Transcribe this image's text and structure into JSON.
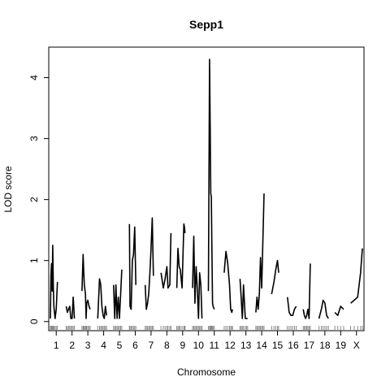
{
  "chart_data": {
    "type": "line",
    "title": "Sepp1",
    "xlabel": "Chromosome",
    "ylabel": "LOD score",
    "ylim": [
      -0.15,
      4.5
    ],
    "yticks": [
      0,
      1,
      2,
      3,
      4
    ],
    "grid": false,
    "legend": "none",
    "line_color": "#000000",
    "chromosomes": [
      "1",
      "2",
      "3",
      "4",
      "5",
      "6",
      "7",
      "8",
      "9",
      "10",
      "11",
      "12",
      "13",
      "14",
      "15",
      "16",
      "17",
      "18",
      "19",
      "X"
    ],
    "tick_labels": [
      "1",
      "2",
      "3",
      "4",
      "5",
      "6",
      "7",
      "8",
      "9",
      "10",
      "11",
      "12",
      "13",
      "14",
      "15",
      "16",
      "17",
      "18",
      "19",
      "X"
    ],
    "series": [
      {
        "chr": "1",
        "x": [
          0,
          0.05,
          0.1,
          0.15,
          0.2,
          0.25,
          0.3,
          0.4,
          0.5,
          0.6
        ],
        "y": [
          0.05,
          0.75,
          0.95,
          0.5,
          1.25,
          0.6,
          0.25,
          0.05,
          0.2,
          0.65
        ]
      },
      {
        "chr": "2",
        "x": [
          0,
          0.1,
          0.2,
          0.3,
          0.4,
          0.5,
          0.6,
          0.7
        ],
        "y": [
          0.25,
          0.15,
          0.2,
          0.25,
          0.05,
          0.05,
          0.4,
          0.05
        ]
      },
      {
        "chr": "3",
        "x": [
          0,
          0.1,
          0.15,
          0.2,
          0.3,
          0.35,
          0.4,
          0.5,
          0.6,
          0.7
        ],
        "y": [
          0.5,
          1.1,
          0.8,
          0.6,
          0.45,
          0.05,
          0.3,
          0.35,
          0.25,
          0.2
        ]
      },
      {
        "chr": "4",
        "x": [
          0,
          0.15,
          0.25,
          0.35,
          0.45,
          0.55,
          0.65,
          0.75
        ],
        "y": [
          0.05,
          0.7,
          0.6,
          0.25,
          0.1,
          0.05,
          0.25,
          0.1
        ]
      },
      {
        "chr": "5",
        "x": [
          0,
          0.1,
          0.2,
          0.3,
          0.4,
          0.5,
          0.6,
          0.7
        ],
        "y": [
          0.6,
          0.05,
          0.6,
          0.05,
          0.4,
          0.05,
          0.45,
          0.85
        ]
      },
      {
        "chr": "6",
        "x": [
          0,
          0.05,
          0.15,
          0.25,
          0.35,
          0.45,
          0.55
        ],
        "y": [
          1.6,
          0.25,
          0.2,
          1.0,
          1.1,
          1.55,
          0.6
        ]
      },
      {
        "chr": "7",
        "x": [
          0,
          0.1,
          0.2,
          0.3,
          0.4,
          0.5,
          0.6,
          0.7
        ],
        "y": [
          0.6,
          0.2,
          0.3,
          0.45,
          0.8,
          1.2,
          1.7,
          0.75
        ]
      },
      {
        "chr": "8",
        "x": [
          0,
          0.2,
          0.35,
          0.5,
          0.6,
          0.75,
          0.85
        ],
        "y": [
          0.8,
          0.55,
          0.7,
          0.9,
          0.55,
          0.6,
          1.45
        ]
      },
      {
        "chr": "9",
        "x": [
          0,
          0.1,
          0.2,
          0.3,
          0.45,
          0.6,
          0.65,
          0.7
        ],
        "y": [
          0.55,
          1.2,
          0.9,
          0.85,
          0.55,
          1.6,
          1.55,
          1.45
        ]
      },
      {
        "chr": "10",
        "x": [
          0,
          0.1,
          0.2,
          0.3,
          0.4,
          0.5,
          0.6,
          0.7,
          0.8
        ],
        "y": [
          0.55,
          1.4,
          0.3,
          0.9,
          0.55,
          0.05,
          0.8,
          0.6,
          0.05
        ]
      },
      {
        "chr": "11",
        "x": [
          0,
          0.1,
          0.15,
          0.2,
          0.25,
          0.3,
          0.35,
          0.4,
          0.5
        ],
        "y": [
          0.5,
          4.3,
          3.2,
          2.1,
          2.05,
          1.2,
          0.3,
          0.25,
          0.2
        ]
      },
      {
        "chr": "12",
        "x": [
          0,
          0.15,
          0.3,
          0.45,
          0.55,
          0.65,
          0.7
        ],
        "y": [
          0.8,
          1.15,
          0.95,
          0.6,
          0.2,
          0.15,
          0.2
        ]
      },
      {
        "chr": "13",
        "x": [
          0,
          0.1,
          0.2,
          0.3,
          0.45,
          0.55,
          0.65
        ],
        "y": [
          0.7,
          0.4,
          0.05,
          0.6,
          0.05,
          0.05,
          0.05
        ]
      },
      {
        "chr": "14",
        "x": [
          0,
          0.1,
          0.2,
          0.3,
          0.4,
          0.5,
          0.6,
          0.7
        ],
        "y": [
          0.15,
          0.4,
          0.2,
          0.45,
          1.05,
          0.55,
          1.3,
          2.1
        ]
      },
      {
        "chr": "15",
        "x": [
          0,
          0.2,
          0.35,
          0.5,
          0.6
        ],
        "y": [
          0.45,
          0.65,
          0.85,
          1.0,
          0.8
        ]
      },
      {
        "chr": "16",
        "x": [
          0,
          0.15,
          0.3,
          0.45,
          0.6,
          0.75
        ],
        "y": [
          0.4,
          0.15,
          0.1,
          0.1,
          0.2,
          0.25
        ]
      },
      {
        "chr": "17",
        "x": [
          0,
          0.1,
          0.2,
          0.3,
          0.4,
          0.5,
          0.6
        ],
        "y": [
          0.2,
          0.1,
          0.05,
          0.1,
          0.2,
          0.05,
          0.95
        ]
      },
      {
        "chr": "18",
        "x": [
          0,
          0.2,
          0.35,
          0.5,
          0.65,
          0.8
        ],
        "y": [
          0.05,
          0.2,
          0.35,
          0.3,
          0.1,
          0.05
        ]
      },
      {
        "chr": "19",
        "x": [
          0,
          0.25,
          0.5,
          0.75
        ],
        "y": [
          0.15,
          0.1,
          0.25,
          0.2
        ]
      },
      {
        "chr": "X",
        "x": [
          0,
          0.3,
          0.6,
          0.85,
          1.0
        ],
        "y": [
          0.3,
          0.35,
          0.4,
          0.8,
          1.2
        ]
      }
    ]
  }
}
